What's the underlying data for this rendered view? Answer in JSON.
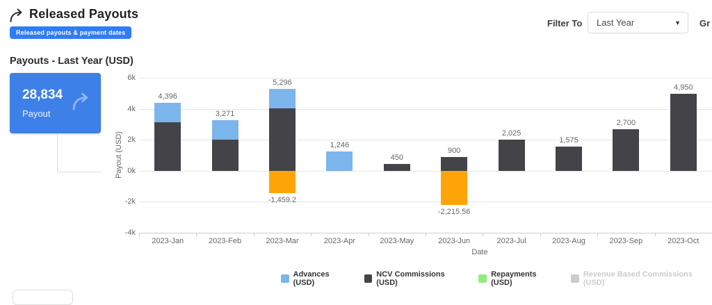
{
  "header": {
    "title": "Released Payouts",
    "badge": "Released payouts & payment dates"
  },
  "controls": {
    "filter_label": "Filter To",
    "filter_value": "Last Year",
    "caret": "▼",
    "group_by_partial": "Gr"
  },
  "section_title": "Payouts - Last Year (USD)",
  "kpi": {
    "value": "28,834",
    "label": "Payout"
  },
  "colors": {
    "badge_blue": "#2f7cf5",
    "card_blue": "#3d80e8",
    "advances_blue": "#7cb5ec",
    "ncv_dark": "#434348",
    "repayments_green": "#90ed7d",
    "repayments_negative_orange": "#ffa408",
    "disabled_gray": "#cccccc",
    "gridline": "#e6e6e6",
    "axis_text": "#666666"
  },
  "chart_data": {
    "type": "bar",
    "stacked": true,
    "title": "Payouts - Last Year (USD)",
    "xlabel": "Date",
    "ylabel": "Payout (USD)",
    "ylim": [
      -4000,
      6000
    ],
    "grid": true,
    "legend_position": "bottom",
    "yticks": [
      {
        "label": "6k",
        "value": 6000
      },
      {
        "label": "4k",
        "value": 4000
      },
      {
        "label": "2k",
        "value": 2000
      },
      {
        "label": "0k",
        "value": 0
      },
      {
        "label": "-2k",
        "value": -2000
      },
      {
        "label": "-4k",
        "value": -4000
      }
    ],
    "categories": [
      "2023-Jan",
      "2023-Feb",
      "2023-Mar",
      "2023-Apr",
      "2023-May",
      "2023-Jun",
      "2023-Jul",
      "2023-Aug",
      "2023-Sep",
      "2023-Oct"
    ],
    "series": [
      {
        "name": "Advances (USD)",
        "color": "#7cb5ec",
        "hidden": false,
        "values": [
          1271,
          1271,
          1271,
          1246,
          0,
          0,
          0,
          0,
          0,
          0
        ]
      },
      {
        "name": "NCV Commissions (USD)",
        "color": "#434348",
        "hidden": false,
        "values": [
          3125,
          2000,
          4025,
          0,
          450,
          900,
          2025,
          1575,
          2700,
          4950
        ]
      },
      {
        "name": "Repayments (USD)",
        "color": "#90ed7d",
        "negative_color": "#ffa408",
        "hidden": false,
        "values": [
          0,
          0,
          -1459.2,
          0,
          0,
          -2215.56,
          0,
          0,
          0,
          0
        ]
      },
      {
        "name": "Revenue Based Commissions (USD)",
        "color": "#cccccc",
        "hidden": true,
        "values": [
          0,
          0,
          0,
          0,
          0,
          0,
          0,
          0,
          0,
          0
        ]
      }
    ],
    "total_labels": [
      "4,396",
      "3,271",
      "5,296",
      "1,246",
      "450",
      "900",
      "2,025",
      "1,575",
      "2,700",
      "4,950"
    ],
    "negative_labels": [
      null,
      null,
      "-1,459.2",
      null,
      null,
      "-2,215.56",
      null,
      null,
      null,
      null
    ]
  }
}
